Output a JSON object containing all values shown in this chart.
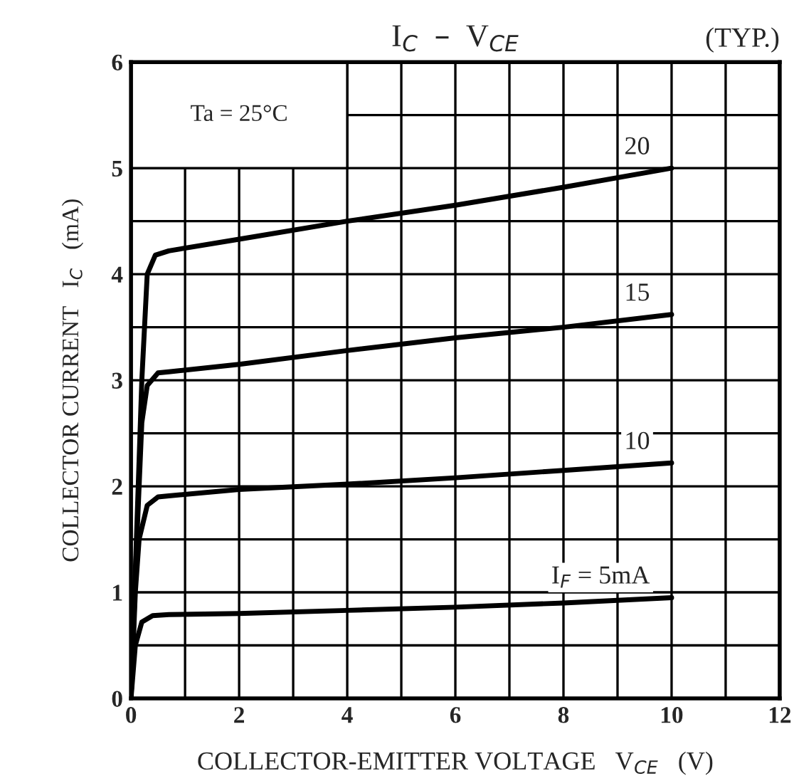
{
  "chart_data": {
    "type": "line",
    "title": "I$_{C}$  –  V$_{CE}$",
    "xlabel": "COLLECTOR-EMITTER VOLTAGE   V$_{CE}$   (V)",
    "ylabel": "COLLECTOR CURRENT   I$_{C}$   (mA)",
    "annotations": [
      "(TYP.)",
      "Ta = 25°C"
    ],
    "series": [
      {
        "name": "20",
        "color": "#000000",
        "x": [
          0,
          0.1,
          0.2,
          0.3,
          0.45,
          0.7,
          2,
          4,
          6,
          8,
          10
        ],
        "values": [
          0,
          1.5,
          3.0,
          4.0,
          4.18,
          4.22,
          4.33,
          4.5,
          4.65,
          4.82,
          5.0
        ]
      },
      {
        "name": "15",
        "color": "#000000",
        "x": [
          0,
          0.1,
          0.2,
          0.3,
          0.5,
          0.7,
          2,
          4,
          6,
          8,
          10
        ],
        "values": [
          0,
          1.4,
          2.6,
          2.95,
          3.07,
          3.08,
          3.15,
          3.28,
          3.4,
          3.5,
          3.62
        ]
      },
      {
        "name": "10",
        "color": "#000000",
        "x": [
          0,
          0.08,
          0.15,
          0.3,
          0.5,
          0.7,
          2,
          4,
          6,
          8,
          10
        ],
        "values": [
          0,
          1.0,
          1.5,
          1.82,
          1.9,
          1.91,
          1.97,
          2.02,
          2.08,
          2.15,
          2.22
        ]
      },
      {
        "name": "I$_{F}$ = 5mA",
        "color": "#000000",
        "x": [
          0,
          0.08,
          0.2,
          0.4,
          0.7,
          2,
          4,
          6,
          8,
          10
        ],
        "values": [
          0,
          0.5,
          0.72,
          0.78,
          0.79,
          0.8,
          0.83,
          0.86,
          0.9,
          0.95
        ]
      }
    ],
    "xlim": [
      0,
      12
    ],
    "ylim": [
      0,
      6
    ],
    "xticks": [
      0,
      {
        "value": 1,
        "label": null
      },
      2,
      {
        "value": 3,
        "label": null
      },
      4,
      {
        "value": 5,
        "label": null
      },
      6,
      {
        "value": 7,
        "label": null
      },
      8,
      {
        "value": 9,
        "label": null
      },
      10,
      {
        "value": 11,
        "label": null
      },
      12
    ],
    "yticks": [
      0,
      {
        "value": 0.5,
        "label": null
      },
      1,
      {
        "value": 1.5,
        "label": null
      },
      2,
      {
        "value": 2.5,
        "label": null
      },
      3,
      {
        "value": 3.5,
        "label": null
      },
      4,
      {
        "value": 4.5,
        "label": null
      },
      5,
      {
        "value": 5.5,
        "label": null
      },
      6
    ],
    "grid": true,
    "legend": false,
    "marker": "none",
    "line_style": "solid"
  }
}
